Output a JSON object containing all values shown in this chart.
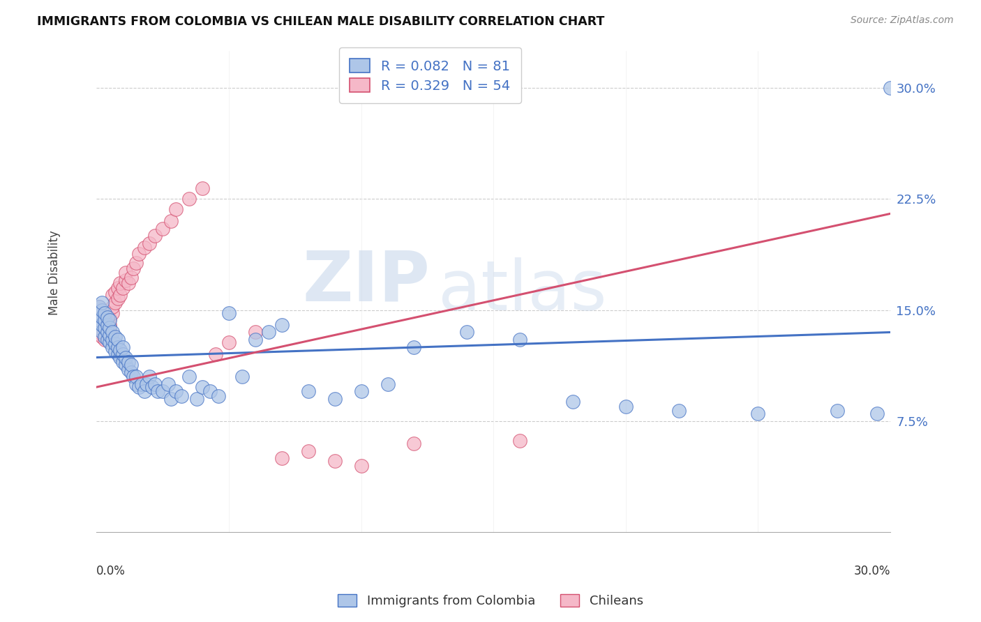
{
  "title": "IMMIGRANTS FROM COLOMBIA VS CHILEAN MALE DISABILITY CORRELATION CHART",
  "source": "Source: ZipAtlas.com",
  "ylabel": "Male Disability",
  "yticks": [
    "7.5%",
    "15.0%",
    "22.5%",
    "30.0%"
  ],
  "ytick_vals": [
    0.075,
    0.15,
    0.225,
    0.3
  ],
  "xlim": [
    0.0,
    0.3
  ],
  "ylim": [
    0.0,
    0.325
  ],
  "legend_r_colombia": "R = 0.082",
  "legend_n_colombia": "N = 81",
  "legend_r_chileans": "R = 0.329",
  "legend_n_chileans": "N = 54",
  "color_colombia": "#aec6e8",
  "color_chileans": "#f5b8c8",
  "line_color_colombia": "#4472c4",
  "line_color_chileans": "#d45070",
  "watermark_zip": "ZIP",
  "watermark_atlas": "atlas",
  "colombia_x": [
    0.001,
    0.001,
    0.001,
    0.001,
    0.002,
    0.002,
    0.002,
    0.002,
    0.002,
    0.003,
    0.003,
    0.003,
    0.003,
    0.004,
    0.004,
    0.004,
    0.004,
    0.005,
    0.005,
    0.005,
    0.005,
    0.006,
    0.006,
    0.006,
    0.007,
    0.007,
    0.007,
    0.008,
    0.008,
    0.008,
    0.009,
    0.009,
    0.01,
    0.01,
    0.01,
    0.011,
    0.011,
    0.012,
    0.012,
    0.013,
    0.013,
    0.014,
    0.015,
    0.015,
    0.016,
    0.017,
    0.018,
    0.019,
    0.02,
    0.021,
    0.022,
    0.023,
    0.025,
    0.027,
    0.028,
    0.03,
    0.032,
    0.035,
    0.038,
    0.04,
    0.043,
    0.046,
    0.05,
    0.055,
    0.06,
    0.065,
    0.07,
    0.08,
    0.09,
    0.1,
    0.11,
    0.12,
    0.14,
    0.16,
    0.18,
    0.2,
    0.22,
    0.25,
    0.28,
    0.295,
    0.3
  ],
  "colombia_y": [
    0.138,
    0.143,
    0.148,
    0.152,
    0.135,
    0.14,
    0.145,
    0.15,
    0.155,
    0.132,
    0.138,
    0.143,
    0.148,
    0.13,
    0.135,
    0.14,
    0.145,
    0.128,
    0.133,
    0.138,
    0.143,
    0.125,
    0.13,
    0.135,
    0.122,
    0.127,
    0.132,
    0.12,
    0.125,
    0.13,
    0.118,
    0.123,
    0.115,
    0.12,
    0.125,
    0.113,
    0.118,
    0.11,
    0.115,
    0.108,
    0.113,
    0.105,
    0.1,
    0.105,
    0.098,
    0.1,
    0.095,
    0.1,
    0.105,
    0.098,
    0.1,
    0.095,
    0.095,
    0.1,
    0.09,
    0.095,
    0.092,
    0.105,
    0.09,
    0.098,
    0.095,
    0.092,
    0.148,
    0.105,
    0.13,
    0.135,
    0.14,
    0.095,
    0.09,
    0.095,
    0.1,
    0.125,
    0.135,
    0.13,
    0.088,
    0.085,
    0.082,
    0.08,
    0.082,
    0.08,
    0.3
  ],
  "chileans_x": [
    0.001,
    0.001,
    0.001,
    0.001,
    0.001,
    0.002,
    0.002,
    0.002,
    0.002,
    0.002,
    0.003,
    0.003,
    0.003,
    0.003,
    0.004,
    0.004,
    0.004,
    0.005,
    0.005,
    0.005,
    0.006,
    0.006,
    0.006,
    0.007,
    0.007,
    0.008,
    0.008,
    0.009,
    0.009,
    0.01,
    0.011,
    0.011,
    0.012,
    0.013,
    0.014,
    0.015,
    0.016,
    0.018,
    0.02,
    0.022,
    0.025,
    0.028,
    0.03,
    0.035,
    0.04,
    0.045,
    0.05,
    0.06,
    0.07,
    0.08,
    0.09,
    0.1,
    0.12,
    0.16
  ],
  "chileans_y": [
    0.135,
    0.14,
    0.145,
    0.148,
    0.152,
    0.132,
    0.138,
    0.142,
    0.146,
    0.15,
    0.13,
    0.135,
    0.14,
    0.144,
    0.138,
    0.142,
    0.146,
    0.135,
    0.14,
    0.144,
    0.148,
    0.152,
    0.16,
    0.155,
    0.162,
    0.158,
    0.165,
    0.16,
    0.168,
    0.165,
    0.17,
    0.175,
    0.168,
    0.172,
    0.178,
    0.182,
    0.188,
    0.192,
    0.195,
    0.2,
    0.205,
    0.21,
    0.218,
    0.225,
    0.232,
    0.12,
    0.128,
    0.135,
    0.05,
    0.055,
    0.048,
    0.045,
    0.06,
    0.062
  ]
}
